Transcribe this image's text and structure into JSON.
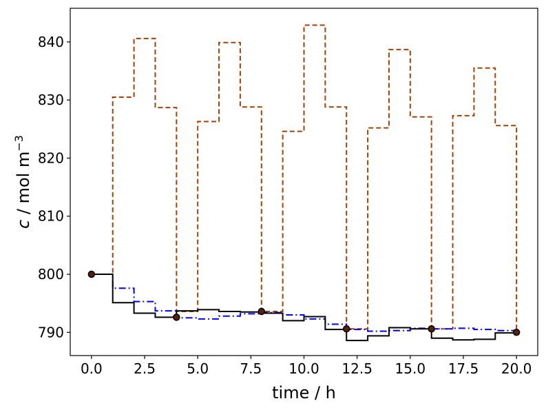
{
  "chart_data": {
    "type": "line",
    "xlabel": "time / h",
    "ylabel_italic": "c",
    "ylabel_rest": " / mol m",
    "ylabel_sup": "−3",
    "xlim": [
      -1.0,
      21.0
    ],
    "ylim": [
      786,
      845.8
    ],
    "xticks": [
      0,
      2.5,
      5,
      7.5,
      10,
      12.5,
      15,
      17.5,
      20
    ],
    "xtick_labels": [
      "0.0",
      "2.5",
      "5.0",
      "7.5",
      "10.0",
      "12.5",
      "15.0",
      "17.5",
      "20.0"
    ],
    "yticks": [
      790,
      800,
      810,
      820,
      830,
      840
    ],
    "ytick_labels": [
      "790",
      "800",
      "810",
      "820",
      "830",
      "840"
    ],
    "grid": false,
    "series": [
      {
        "style": "dashed",
        "color": "#a0420a",
        "x": [
          0,
          1,
          2,
          3,
          4,
          5,
          6,
          7,
          8,
          9,
          10,
          11,
          12,
          13,
          14,
          15,
          16,
          17,
          18,
          19,
          20
        ],
        "y": [
          800.0,
          830.5,
          840.6,
          828.7,
          793.6,
          826.3,
          839.9,
          828.8,
          793.6,
          824.6,
          842.9,
          828.8,
          790.6,
          825.2,
          838.7,
          827.1,
          790.6,
          827.3,
          835.5,
          825.6,
          790.6
        ]
      },
      {
        "style": "dashdot",
        "color": "#0000ee",
        "x": [
          0,
          1,
          2,
          3,
          4,
          5,
          6,
          7,
          8,
          9,
          10,
          11,
          12,
          13,
          14,
          15,
          16,
          17,
          18,
          19,
          20
        ],
        "y": [
          800.0,
          797.6,
          795.3,
          793.7,
          792.5,
          792.3,
          792.8,
          793.2,
          793.4,
          793.0,
          792.3,
          791.4,
          790.5,
          790.2,
          790.3,
          790.7,
          790.6,
          790.7,
          790.5,
          790.3,
          790.2
        ]
      },
      {
        "style": "solid",
        "color": "#000000",
        "x": [
          0,
          1,
          2,
          3,
          4,
          5,
          6,
          7,
          8,
          9,
          10,
          11,
          12,
          13,
          14,
          15,
          16,
          17,
          18,
          19,
          20
        ],
        "y": [
          800.0,
          795.1,
          793.3,
          792.6,
          793.7,
          793.9,
          793.6,
          793.5,
          793.3,
          792.0,
          792.7,
          790.5,
          788.6,
          789.4,
          790.8,
          790.6,
          789.0,
          788.7,
          788.8,
          789.9,
          790.0
        ]
      }
    ],
    "markers": {
      "color": "#000000",
      "fill": "#5a1f08",
      "x": [
        0,
        4,
        8,
        12,
        16,
        20
      ],
      "y": [
        800.0,
        792.6,
        793.6,
        790.6,
        790.6,
        790.0
      ]
    }
  }
}
